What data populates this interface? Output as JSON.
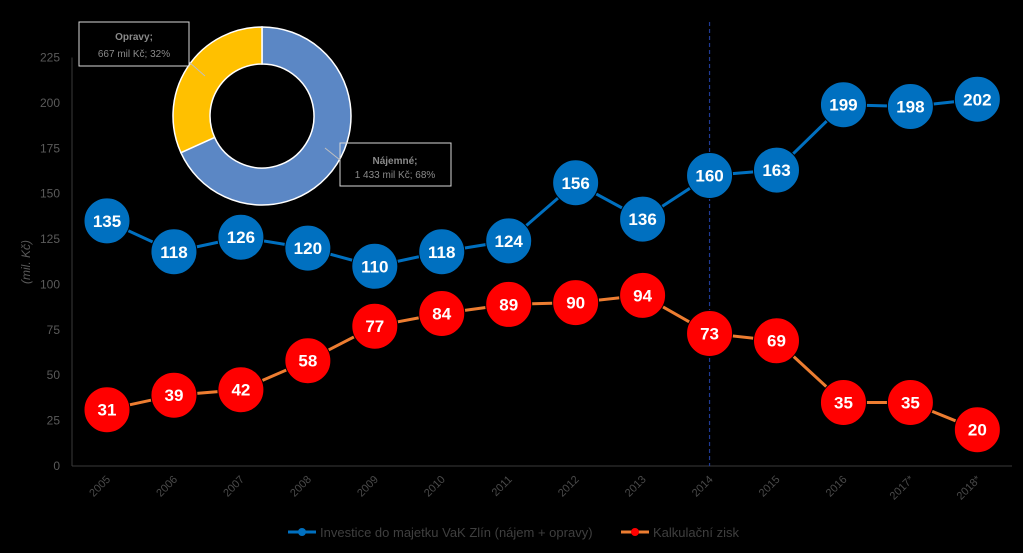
{
  "chart_data": [
    {
      "type": "line",
      "categories": [
        "2005",
        "2006",
        "2007",
        "2008",
        "2009",
        "2010",
        "2011",
        "2012",
        "2013",
        "2014",
        "2015",
        "2016",
        "2017*",
        "2018*"
      ],
      "ylabel": "(mil. Kč)",
      "ylim": [
        0,
        225
      ],
      "yticks": [
        0,
        25,
        50,
        75,
        100,
        125,
        150,
        175,
        200,
        225
      ],
      "grid": false,
      "legend_position": "bottom",
      "reference_line_category": "2014",
      "series": [
        {
          "name": "Investice do majetku VaK Zlín (nájem + opravy)",
          "color": "#0070c0",
          "line_color": "#0070c0",
          "values": [
            135,
            118,
            126,
            120,
            110,
            118,
            124,
            156,
            136,
            160,
            163,
            199,
            198,
            202
          ]
        },
        {
          "name": "Kalkulační zisk",
          "color": "#ff0000",
          "line_color": "#ed7d31",
          "values": [
            31,
            39,
            42,
            58,
            77,
            84,
            89,
            90,
            94,
            73,
            69,
            35,
            35,
            20
          ]
        }
      ]
    },
    {
      "type": "pie",
      "donut": true,
      "slices": [
        {
          "label": "Nájemné",
          "value_text": "1 433 mil Kč; 68%",
          "value": 1433,
          "percent": 68,
          "color": "#5b87c5"
        },
        {
          "label": "Opravy",
          "value_text": "667 mil Kč; 32%",
          "value": 667,
          "percent": 32,
          "color": "#ffc000"
        }
      ]
    }
  ]
}
